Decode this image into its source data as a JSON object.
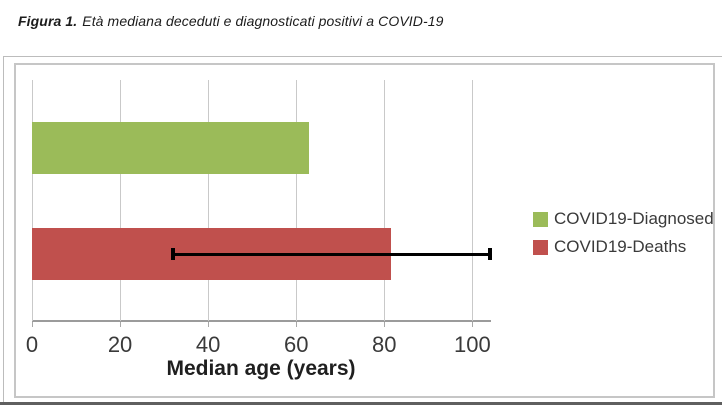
{
  "figure_caption": {
    "prefix": "Figura 1.",
    "text": "Età mediana deceduti e diagnosticati positivi a COVID-19"
  },
  "chart_data": {
    "type": "bar",
    "orientation": "horizontal",
    "title": "",
    "xlabel": "Median age (years)",
    "ylabel": "",
    "xlim": [
      0,
      104
    ],
    "xticks": [
      0,
      20,
      40,
      60,
      80,
      100
    ],
    "grid": true,
    "legend_position": "right-inside",
    "categories": [
      "COVID19-Diagnosed",
      "COVID19-Deaths"
    ],
    "series": [
      {
        "name": "COVID19-Diagnosed",
        "value": 63,
        "color": "#9bbb59"
      },
      {
        "name": "COVID19-Deaths",
        "value": 81.5,
        "color": "#c0504d",
        "error_bar": {
          "min": 32,
          "max": 104,
          "color": "#000000"
        }
      }
    ]
  }
}
